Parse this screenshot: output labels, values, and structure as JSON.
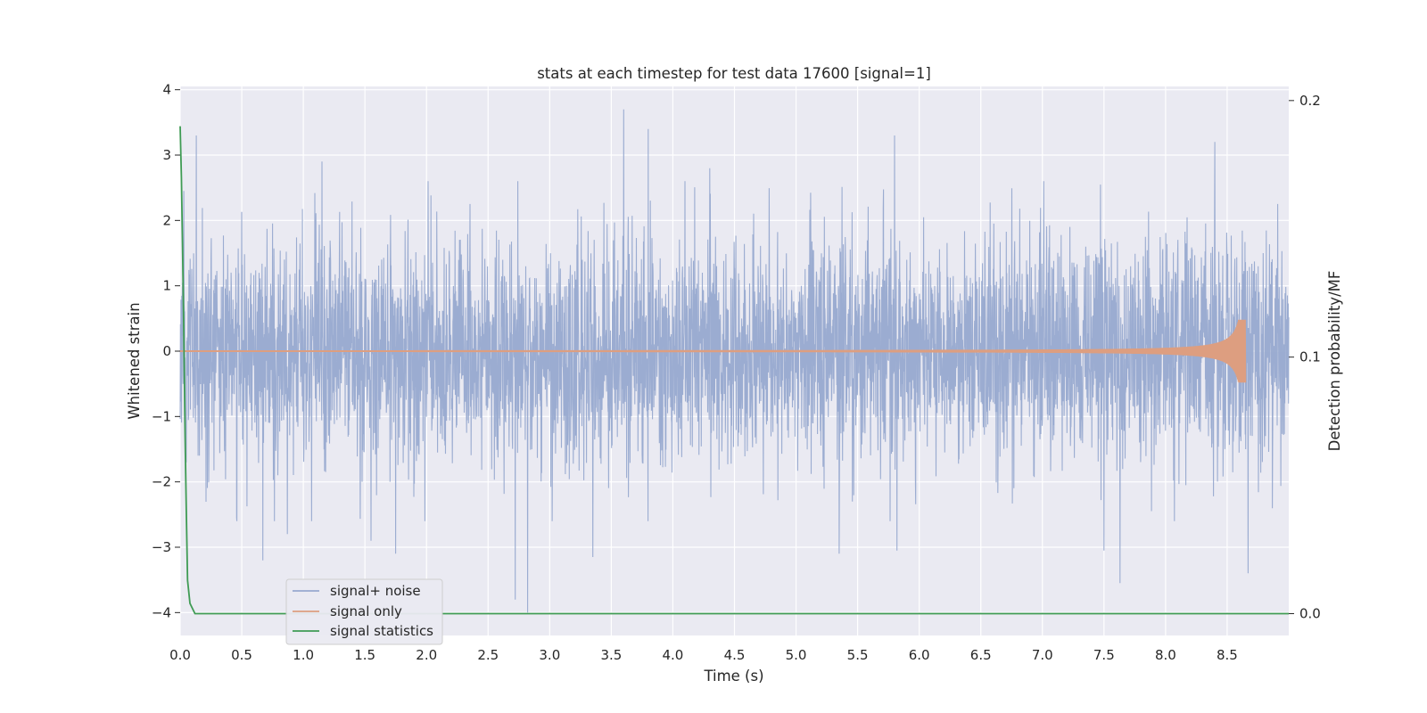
{
  "chart_data": {
    "type": "line",
    "title": "stats at each timestep for test data 17600 [signal=1]",
    "xlabel": "Time (s)",
    "ylabel": "Whitened strain",
    "y2label": "Detection probability/MF",
    "xlim": [
      0.0,
      9.0
    ],
    "ylim": [
      -4.35,
      4.05
    ],
    "y2lim": [
      -0.0085,
      0.2055
    ],
    "xticks": [
      0.0,
      0.5,
      1.0,
      1.5,
      2.0,
      2.5,
      3.0,
      3.5,
      4.0,
      4.5,
      5.0,
      5.5,
      6.0,
      6.5,
      7.0,
      7.5,
      8.0,
      8.5
    ],
    "xtick_labels": [
      "0.0",
      "0.5",
      "1.0",
      "1.5",
      "2.0",
      "2.5",
      "3.0",
      "3.5",
      "4.0",
      "4.5",
      "5.0",
      "5.5",
      "6.0",
      "6.5",
      "7.0",
      "7.5",
      "8.0",
      "8.5"
    ],
    "yticks": [
      4,
      3,
      2,
      1,
      0,
      -1,
      -2,
      -3,
      -4
    ],
    "ytick_labels": [
      "4",
      "3",
      "2",
      "1",
      "0",
      "−1",
      "−2",
      "−3",
      "−4"
    ],
    "y2ticks": [
      0.2,
      0.1,
      0.0
    ],
    "y2tick_labels": [
      "0.2",
      "0.1",
      "0.0"
    ],
    "grid": true,
    "legend_position": "lower-left",
    "series": [
      {
        "name": "signal+ noise",
        "color": "#97a9cf",
        "axis": "left",
        "noise_sigma": 0.85,
        "peaks": [
          [
            0.03,
            2.45
          ],
          [
            0.05,
            -1.7
          ],
          [
            0.13,
            3.3
          ],
          [
            0.67,
            -3.2
          ],
          [
            0.87,
            -2.8
          ],
          [
            1.15,
            2.9
          ],
          [
            1.55,
            -2.9
          ],
          [
            1.75,
            -3.1
          ],
          [
            2.72,
            -3.8
          ],
          [
            2.82,
            -4.0
          ],
          [
            3.35,
            -3.15
          ],
          [
            3.6,
            3.7
          ],
          [
            3.8,
            3.4
          ],
          [
            4.3,
            2.8
          ],
          [
            5.35,
            -3.1
          ],
          [
            5.8,
            3.3
          ],
          [
            5.82,
            -3.05
          ],
          [
            7.5,
            -3.05
          ],
          [
            7.63,
            -3.55
          ],
          [
            8.4,
            3.2
          ],
          [
            8.67,
            -3.4
          ]
        ]
      },
      {
        "name": "signal only",
        "color": "#dd9e80",
        "axis": "left",
        "chirp": {
          "t_start": 0.0,
          "t_merge": 8.65,
          "amp_start": 0.01,
          "amp_max": 0.48
        }
      },
      {
        "name": "signal statistics",
        "color": "#3f9b54",
        "axis": "right",
        "x": [
          0.0,
          0.01,
          0.02,
          0.03,
          0.04,
          0.05,
          0.06,
          0.08,
          0.12,
          9.0
        ],
        "y": [
          0.19,
          0.17,
          0.14,
          0.11,
          0.07,
          0.04,
          0.013,
          0.004,
          0.0,
          0.0
        ]
      }
    ]
  }
}
